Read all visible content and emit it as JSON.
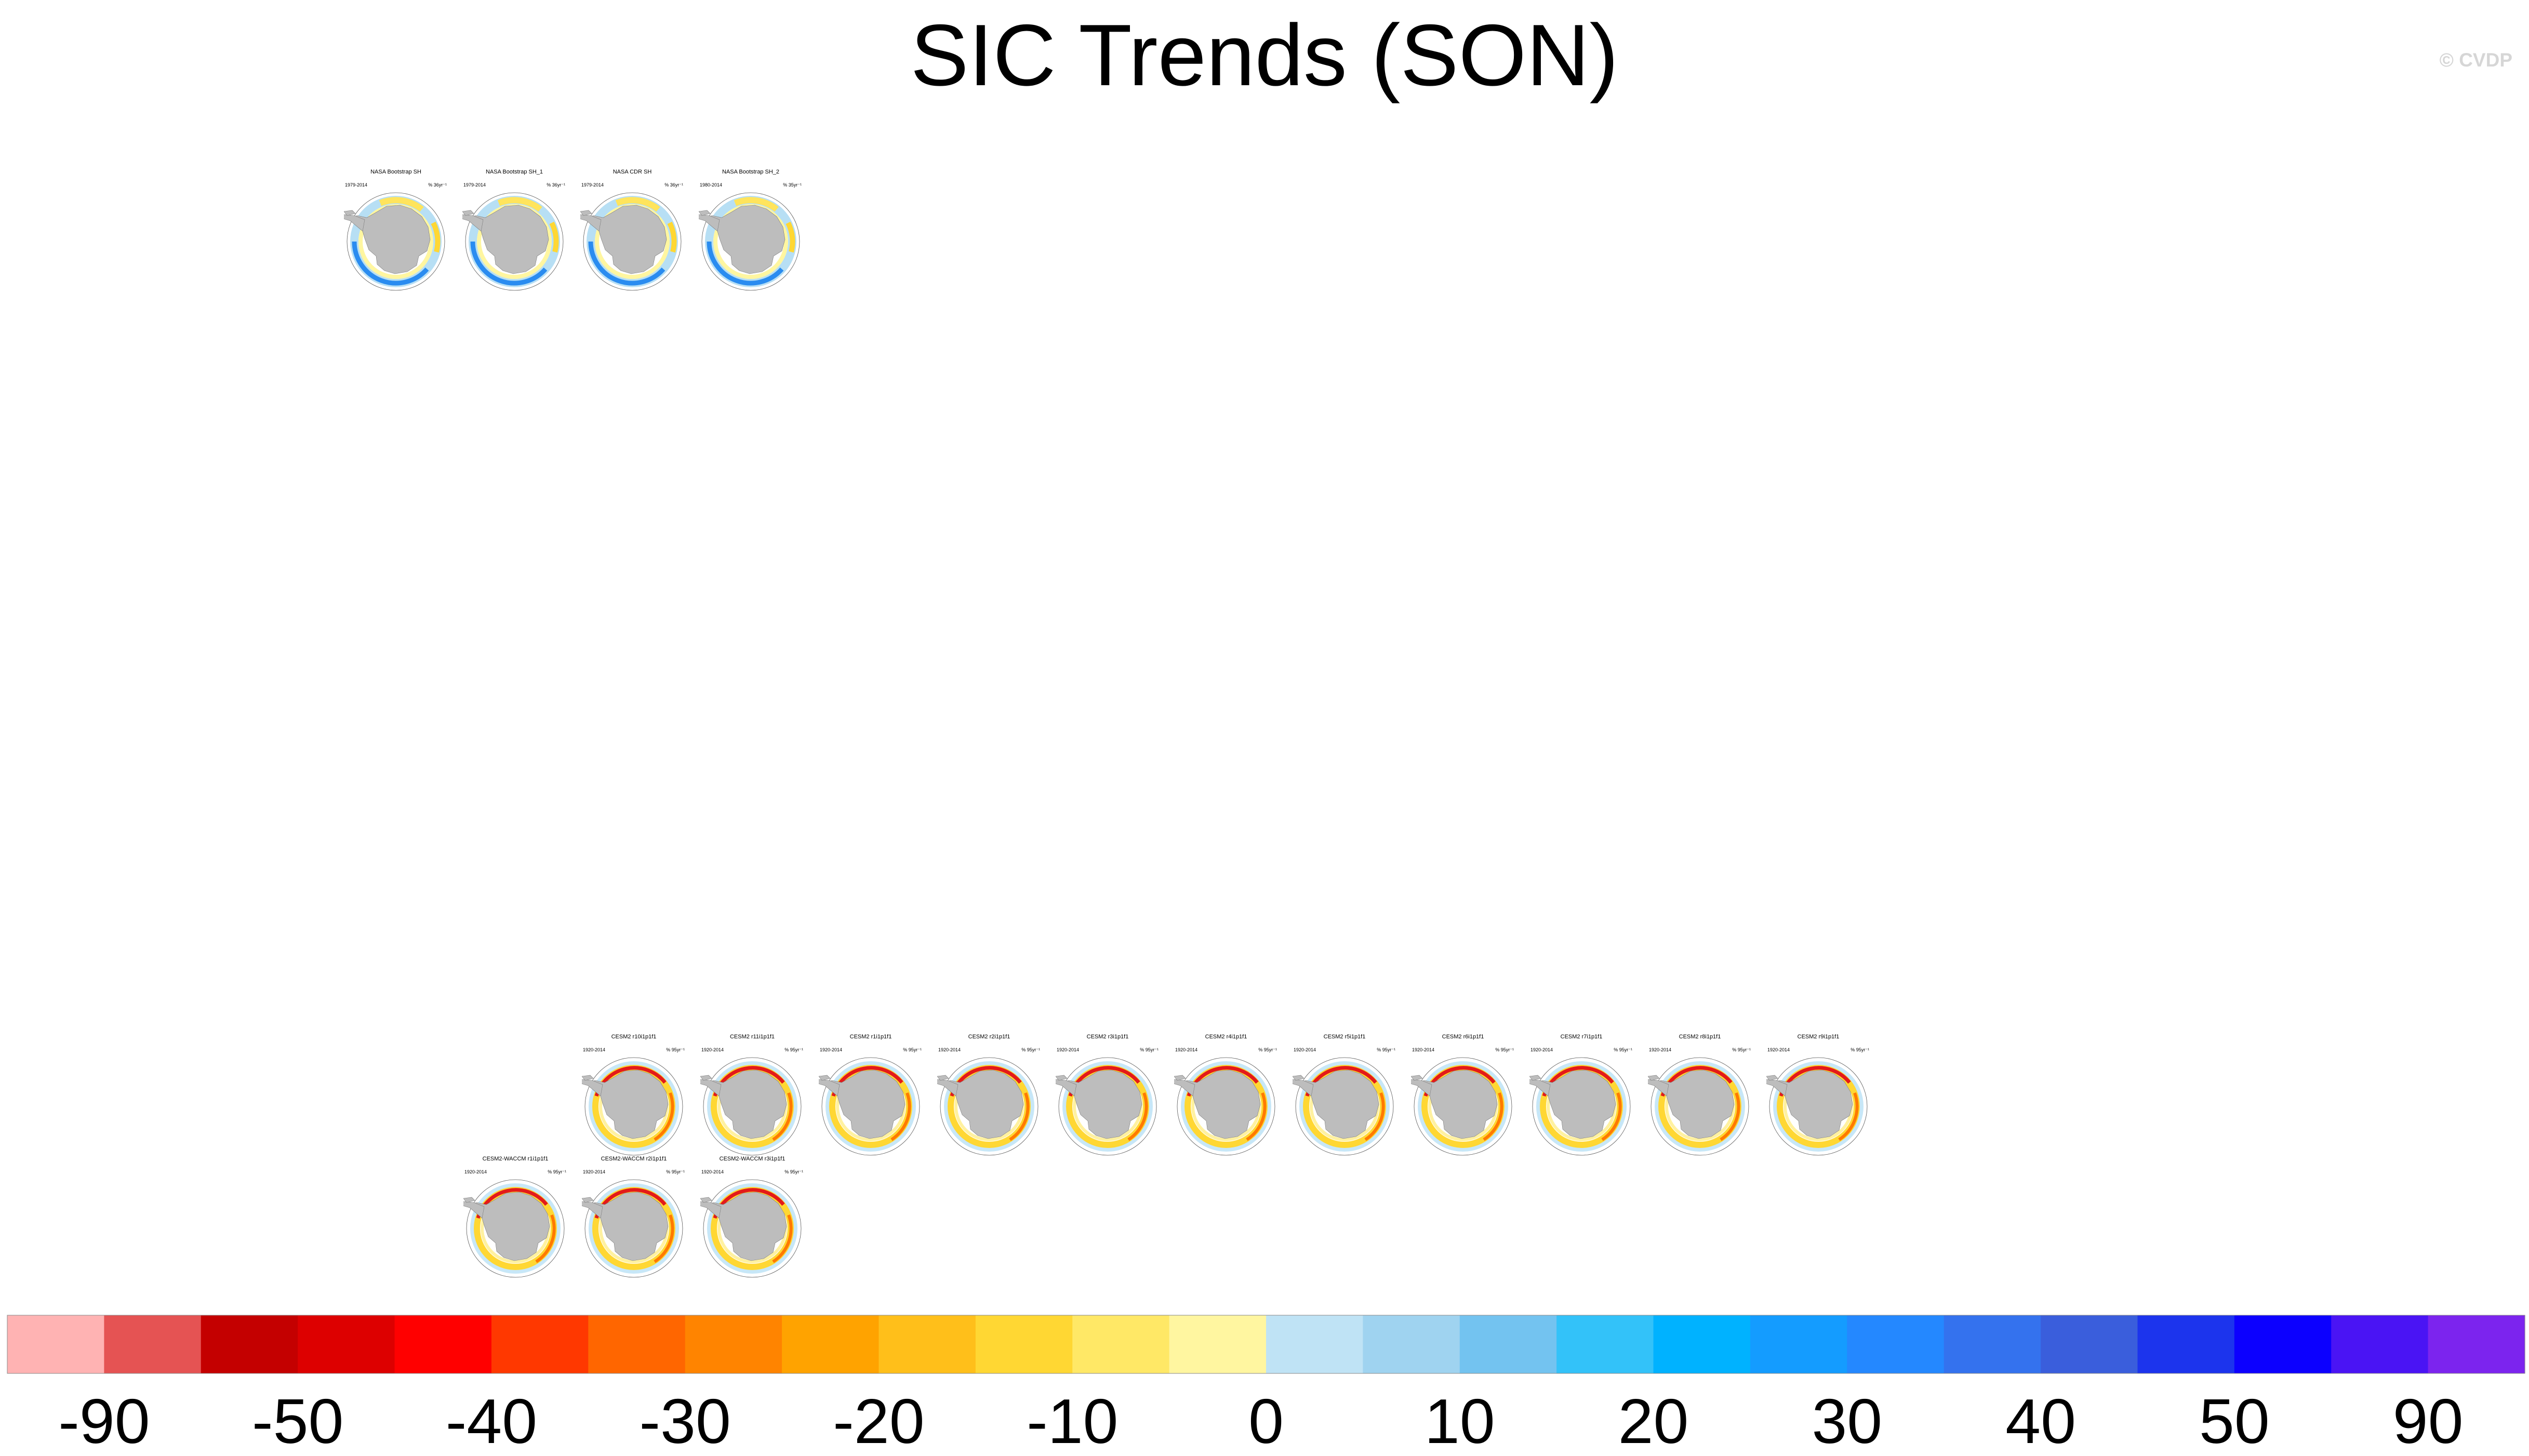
{
  "title": "SIC Trends (SON)",
  "watermark": "© CVDP",
  "colorbar": {
    "colors": [
      "#ffb3b3",
      "#e55353",
      "#c40000",
      "#dd0000",
      "#ff0000",
      "#ff3800",
      "#ff6600",
      "#ff8400",
      "#ffa300",
      "#ffbf1a",
      "#ffd733",
      "#ffe866",
      "#fff6a0",
      "#bfe3f5",
      "#9fd3f0",
      "#73c3f0",
      "#33c2f9",
      "#00b2ff",
      "#149cff",
      "#2488ff",
      "#3472ee",
      "#3a5edc",
      "#1c34ed",
      "#0c00ff",
      "#4a14f4",
      "#7c24ee"
    ],
    "labels": [
      "-90",
      "-50",
      "-40",
      "-30",
      "-20",
      "-10",
      "0",
      "10",
      "20",
      "30",
      "40",
      "50",
      "90"
    ]
  },
  "chart_data": {
    "type": "polar-map-panel-grid",
    "title": "SIC Trends (SON)",
    "value_levels": [
      -90,
      -50,
      -45,
      -40,
      -35,
      -30,
      -25,
      -20,
      -15,
      -10,
      -5,
      0,
      5,
      10,
      15,
      20,
      25,
      30,
      35,
      40,
      45,
      50,
      90
    ],
    "panels": [
      {
        "name": "NASA Bootstrap SH",
        "years": "1979-2014",
        "units": "% 36yr⁻¹",
        "pattern": "obs"
      },
      {
        "name": "NASA Bootstrap SH_1",
        "years": "1979-2014",
        "units": "% 36yr⁻¹",
        "pattern": "obs"
      },
      {
        "name": "NASA CDR SH",
        "years": "1979-2014",
        "units": "% 36yr⁻¹",
        "pattern": "obs"
      },
      {
        "name": "NASA Bootstrap SH_2",
        "years": "1980-2014",
        "units": "% 35yr⁻¹",
        "pattern": "obs"
      },
      {
        "name": "CESM2 r10i1p1f1",
        "years": "1920-2014",
        "units": "% 95yr⁻¹",
        "pattern": "model"
      },
      {
        "name": "CESM2 r11i1p1f1",
        "years": "1920-2014",
        "units": "% 95yr⁻¹",
        "pattern": "model"
      },
      {
        "name": "CESM2 r1i1p1f1",
        "years": "1920-2014",
        "units": "% 95yr⁻¹",
        "pattern": "model"
      },
      {
        "name": "CESM2 r2i1p1f1",
        "years": "1920-2014",
        "units": "% 95yr⁻¹",
        "pattern": "model"
      },
      {
        "name": "CESM2 r3i1p1f1",
        "years": "1920-2014",
        "units": "% 95yr⁻¹",
        "pattern": "model"
      },
      {
        "name": "CESM2 r4i1p1f1",
        "years": "1920-2014",
        "units": "% 95yr⁻¹",
        "pattern": "model"
      },
      {
        "name": "CESM2 r5i1p1f1",
        "years": "1920-2014",
        "units": "% 95yr⁻¹",
        "pattern": "model"
      },
      {
        "name": "CESM2 r6i1p1f1",
        "years": "1920-2014",
        "units": "% 95yr⁻¹",
        "pattern": "model"
      },
      {
        "name": "CESM2 r7i1p1f1",
        "years": "1920-2014",
        "units": "% 95yr⁻¹",
        "pattern": "model"
      },
      {
        "name": "CESM2 r8i1p1f1",
        "years": "1920-2014",
        "units": "% 95yr⁻¹",
        "pattern": "model"
      },
      {
        "name": "CESM2 r9i1p1f1",
        "years": "1920-2014",
        "units": "% 95yr⁻¹",
        "pattern": "model"
      },
      {
        "name": "CESM2-WACCM r1i1p1f1",
        "years": "1920-2014",
        "units": "% 95yr⁻¹",
        "pattern": "model"
      },
      {
        "name": "CESM2-WACCM r2i1p1f1",
        "years": "1920-2014",
        "units": "% 95yr⁻¹",
        "pattern": "model"
      },
      {
        "name": "CESM2-WACCM r3i1p1f1",
        "years": "1920-2014",
        "units": "% 95yr⁻¹",
        "pattern": "model"
      }
    ]
  }
}
